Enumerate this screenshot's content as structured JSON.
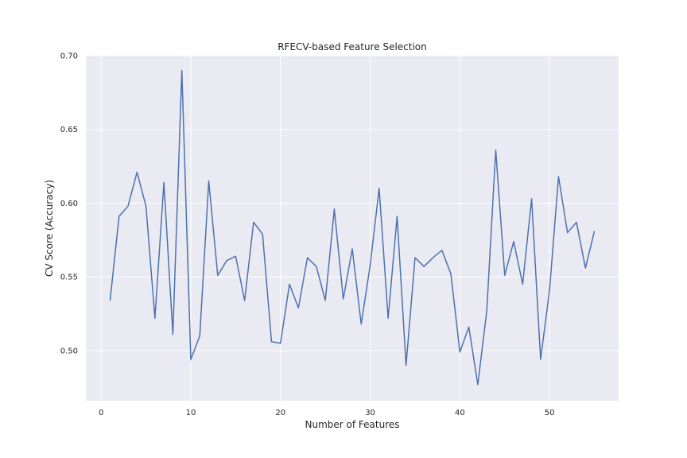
{
  "chart_data": {
    "type": "line",
    "title": "RFECV-based Feature Selection",
    "xlabel": "Number of Features",
    "ylabel": "CV Score (Accuracy)",
    "xlim": [
      -1.7,
      57.7
    ],
    "ylim": [
      0.466,
      0.7
    ],
    "xticks": [
      0,
      10,
      20,
      30,
      40,
      50
    ],
    "yticks": [
      0.5,
      0.55,
      0.6,
      0.65,
      0.7
    ],
    "ytick_labels": [
      "0.50",
      "0.55",
      "0.60",
      "0.65",
      "0.70"
    ],
    "grid": true,
    "colors": {
      "background": "#eaeaf2",
      "grid": "#ffffff",
      "line": "#4c72b0"
    },
    "series": [
      {
        "x": [
          1,
          2,
          3,
          4,
          5,
          6,
          7,
          8,
          9,
          10,
          11,
          12,
          13,
          14,
          15,
          16,
          17,
          18,
          19,
          20,
          21,
          22,
          23,
          24,
          25,
          26,
          27,
          28,
          29,
          30,
          31,
          32,
          33,
          34,
          35,
          36,
          37,
          38,
          39,
          40,
          41,
          42,
          43,
          44,
          45,
          46,
          47,
          48,
          49,
          50,
          51,
          52,
          53,
          54,
          55
        ],
        "values": [
          0.534,
          0.591,
          0.598,
          0.621,
          0.598,
          0.522,
          0.614,
          0.511,
          0.69,
          0.494,
          0.51,
          0.615,
          0.551,
          0.561,
          0.564,
          0.534,
          0.587,
          0.579,
          0.506,
          0.505,
          0.545,
          0.529,
          0.563,
          0.557,
          0.534,
          0.596,
          0.535,
          0.569,
          0.518,
          0.558,
          0.61,
          0.522,
          0.591,
          0.49,
          0.563,
          0.557,
          0.563,
          0.568,
          0.552,
          0.499,
          0.516,
          0.477,
          0.527,
          0.636,
          0.551,
          0.574,
          0.545,
          0.603,
          0.494,
          0.541,
          0.618,
          0.58,
          0.587,
          0.556,
          0.581
        ]
      }
    ]
  }
}
